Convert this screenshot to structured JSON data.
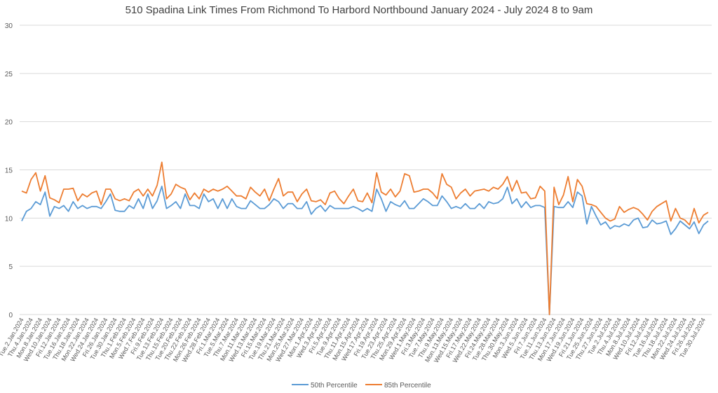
{
  "chart_data": {
    "type": "line",
    "title": "510 Spadina Link Times From Richmond To Harbord Northbound January 2024 - July 2024 8 to 9am",
    "xlabel": "",
    "ylabel": "",
    "ylim": [
      0,
      30
    ],
    "yticks": [
      0,
      5,
      10,
      15,
      20,
      25,
      30
    ],
    "grid": true,
    "legend_position": "bottom",
    "tick_labels_every": 2,
    "tick_labels": [
      "Tue.2.Jan.2024",
      "Thu.4.Jan.2024",
      "Mon.8.Jan.2024",
      "Wed.10.Jan.2024",
      "Fri.12.Jan.2024",
      "Tue.16.Jan.2024",
      "Thu.18.Jan.2024",
      "Mon.22.Jan.2024",
      "Wed.24.Jan.2024",
      "Fri.26.Jan.2024",
      "Tue.30.Jan.2024",
      "Thu.1.Feb.2024",
      "Mon.5.Feb.2024",
      "Wed.7.Feb.2024",
      "Fri.9.Feb.2024",
      "Tue.13.Feb.2024",
      "Thu.15.Feb.2024",
      "Tue.20.Feb.2024",
      "Thu.22.Feb.2024",
      "Mon.26.Feb.2024",
      "Wed.28.Feb.2024",
      "Fri.1.Mar.2024",
      "Tue.5.Mar.2024",
      "Thu.7.Mar.2024",
      "Mon.11.Mar.2024",
      "Wed.13.Mar.2024",
      "Fri.15.Mar.2024",
      "Tue.19.Mar.2024",
      "Thu.21.Mar.2024",
      "Mon.25.Mar.2024",
      "Wed.27.Mar.2024",
      "Mon.1.Apr.2024",
      "Wed.3.Apr.2024",
      "Fri.5.Apr.2024",
      "Tue.9.Apr.2024",
      "Thu.11.Apr.2024",
      "Mon.15.Apr.2024",
      "Wed.17.Apr.2024",
      "Fri.19.Apr.2024",
      "Tue.23.Apr.2024",
      "Thu.25.Apr.2024",
      "Mon.29.Apr.2024",
      "Wed.1.May.2024",
      "Fri.3.May.2024",
      "Tue.7.May.2024",
      "Thu.9.May.2024",
      "Mon.13.May.2024",
      "Wed.15.May.2024",
      "Fri.17.May.2024",
      "Wed.22.May.2024",
      "Fri.24.May.2024",
      "Tue.28.May.2024",
      "Thu.30.May.2024",
      "Mon.3.Jun.2024",
      "Wed.5.Jun.2024",
      "Fri.7.Jun.2024",
      "Tue.11.Jun.2024",
      "Thu.13.Jun.2024",
      "Mon.17.Jun.2024",
      "Wed.19.Jun.2024",
      "Fri.21.Jun.2024",
      "Tue.25.Jun.2024",
      "Thu.27.Jun.2024",
      "Tue.2.Jul.2024",
      "Thu.4.Jul.2024",
      "Mon.8.Jul.2024",
      "Wed.10.Jul.2024",
      "Fri.12.Jul.2024",
      "Tue.16.Jul.2024",
      "Thu.18.Jul.2024",
      "Mon.22.Jul.2024",
      "Wed.24.Jul.2024",
      "Fri.26.Jul.2024",
      "Tue.30.Jul.2024"
    ],
    "series": [
      {
        "name": "50th Percentile",
        "color": "#5b9bd5",
        "values": [
          9.7,
          10.7,
          11.0,
          11.7,
          11.4,
          12.7,
          10.2,
          11.2,
          11.0,
          11.3,
          10.7,
          11.7,
          11.0,
          11.3,
          11.0,
          11.2,
          11.2,
          11.0,
          11.7,
          12.5,
          10.8,
          10.7,
          10.7,
          11.3,
          11.0,
          12.0,
          11.0,
          12.5,
          11.0,
          11.8,
          13.3,
          11.0,
          11.3,
          11.7,
          11.0,
          12.5,
          11.3,
          11.3,
          11.0,
          12.5,
          11.7,
          12.0,
          11.0,
          12.0,
          11.0,
          12.0,
          11.2,
          11.0,
          11.0,
          11.8,
          11.4,
          11.0,
          11.0,
          11.4,
          12.0,
          11.7,
          11.0,
          11.5,
          11.5,
          11.0,
          11.0,
          11.7,
          10.4,
          11.0,
          11.3,
          10.7,
          11.3,
          11.0,
          11.0,
          11.0,
          11.0,
          11.2,
          11.0,
          10.7,
          11.0,
          10.7,
          13.0,
          12.0,
          10.7,
          11.7,
          11.4,
          11.2,
          11.8,
          11.0,
          11.0,
          11.5,
          12.0,
          11.7,
          11.3,
          11.3,
          12.3,
          11.7,
          11.0,
          11.2,
          11.0,
          11.5,
          11.0,
          11.0,
          11.5,
          11.0,
          11.7,
          11.5,
          11.6,
          12.0,
          13.2,
          11.5,
          12.0,
          11.1,
          11.7,
          11.1,
          11.3,
          11.3,
          11.1,
          0,
          11.2,
          11.1,
          11.1,
          11.7,
          11.1,
          12.7,
          12.3,
          9.4,
          11.2,
          10.2,
          9.3,
          9.6,
          8.9,
          9.2,
          9.1,
          9.4,
          9.2,
          9.8,
          10.0,
          9.0,
          9.1,
          9.8,
          9.4,
          9.5,
          9.7,
          8.3,
          8.9,
          9.7,
          9.3,
          8.9,
          9.6,
          8.4,
          9.3,
          9.7
        ]
      },
      {
        "name": "85th Percentile",
        "color": "#ed7d31",
        "values": [
          12.8,
          12.6,
          14.0,
          14.7,
          12.8,
          14.4,
          12.1,
          11.9,
          11.6,
          13.0,
          13.0,
          13.1,
          11.8,
          12.5,
          12.2,
          12.6,
          12.8,
          11.4,
          13.0,
          13.0,
          12.0,
          11.8,
          12.0,
          11.8,
          12.7,
          13.0,
          12.3,
          13.0,
          12.3,
          13.4,
          15.8,
          12.0,
          12.5,
          13.5,
          13.2,
          13.0,
          11.9,
          12.6,
          12.0,
          13.0,
          12.7,
          13.0,
          12.8,
          13.0,
          13.3,
          12.8,
          12.3,
          12.3,
          12.0,
          13.2,
          12.7,
          12.3,
          13.0,
          11.8,
          13.0,
          14.1,
          12.3,
          12.7,
          12.7,
          11.7,
          12.5,
          13.0,
          11.8,
          11.7,
          11.9,
          11.4,
          12.6,
          12.8,
          12.0,
          11.5,
          12.3,
          13.0,
          11.8,
          11.7,
          12.6,
          11.6,
          14.7,
          12.7,
          12.4,
          13.0,
          12.2,
          12.8,
          14.6,
          14.4,
          12.7,
          12.8,
          13.0,
          13.0,
          12.6,
          12.0,
          14.6,
          13.5,
          13.2,
          12.0,
          12.6,
          13.0,
          12.3,
          12.8,
          12.9,
          13.0,
          12.8,
          13.2,
          13.0,
          13.5,
          14.3,
          12.8,
          13.9,
          12.6,
          12.7,
          12.0,
          12.1,
          13.3,
          12.8,
          0,
          13.2,
          11.4,
          12.4,
          14.3,
          11.7,
          14.0,
          13.3,
          11.5,
          11.4,
          11.2,
          10.6,
          10.0,
          9.7,
          9.9,
          11.2,
          10.6,
          10.9,
          11.1,
          10.9,
          10.4,
          9.8,
          10.7,
          11.2,
          11.5,
          11.8,
          9.7,
          11.0,
          10.0,
          9.8,
          9.3,
          11.0,
          9.5,
          10.3,
          10.6
        ]
      }
    ]
  }
}
